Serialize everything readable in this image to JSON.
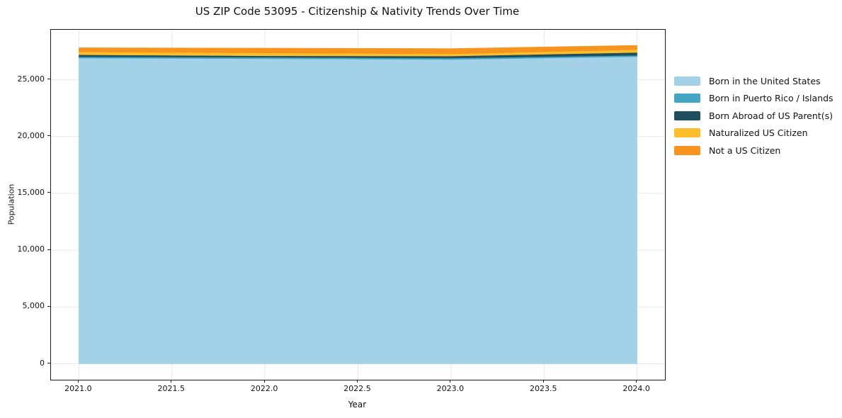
{
  "chart_data": {
    "type": "area",
    "stacked": true,
    "title": "US ZIP Code 53095 - Citizenship & Nativity Trends Over Time",
    "xlabel": "Year",
    "ylabel": "Population",
    "x": [
      2021,
      2022,
      2023,
      2024
    ],
    "series": [
      {
        "name": "Born in the United States",
        "color": "#A3D2E8",
        "values": [
          26900,
          26850,
          26780,
          27030
        ]
      },
      {
        "name": "Born in Puerto Rico / Islands",
        "color": "#44A5C5",
        "values": [
          120,
          125,
          125,
          120
        ]
      },
      {
        "name": "Born Abroad of US Parent(s)",
        "color": "#1F4E5F",
        "values": [
          180,
          130,
          180,
          250
        ]
      },
      {
        "name": "Naturalized US Citizen",
        "color": "#FCBF2B",
        "values": [
          250,
          250,
          190,
          250
        ]
      },
      {
        "name": "Not a US Citizen",
        "color": "#F7941F",
        "values": [
          370,
          430,
          470,
          380
        ]
      }
    ],
    "xlim": [
      2020.85,
      2024.15
    ],
    "ylim": [
      -1400,
      29400
    ],
    "x_ticks": [
      2021.0,
      2021.5,
      2022.0,
      2022.5,
      2023.0,
      2023.5,
      2024.0
    ],
    "x_tick_labels": [
      "2021.0",
      "2021.5",
      "2022.0",
      "2022.5",
      "2023.0",
      "2023.5",
      "2024.0"
    ],
    "y_ticks": [
      0,
      5000,
      10000,
      15000,
      20000,
      25000
    ],
    "y_tick_labels": [
      "0",
      "5,000",
      "10,000",
      "15,000",
      "20,000",
      "25,000"
    ],
    "grid": true,
    "grid_color": "#e7e7e7",
    "spine_color": "#1a1a1a",
    "legend_position": "outside-right"
  }
}
